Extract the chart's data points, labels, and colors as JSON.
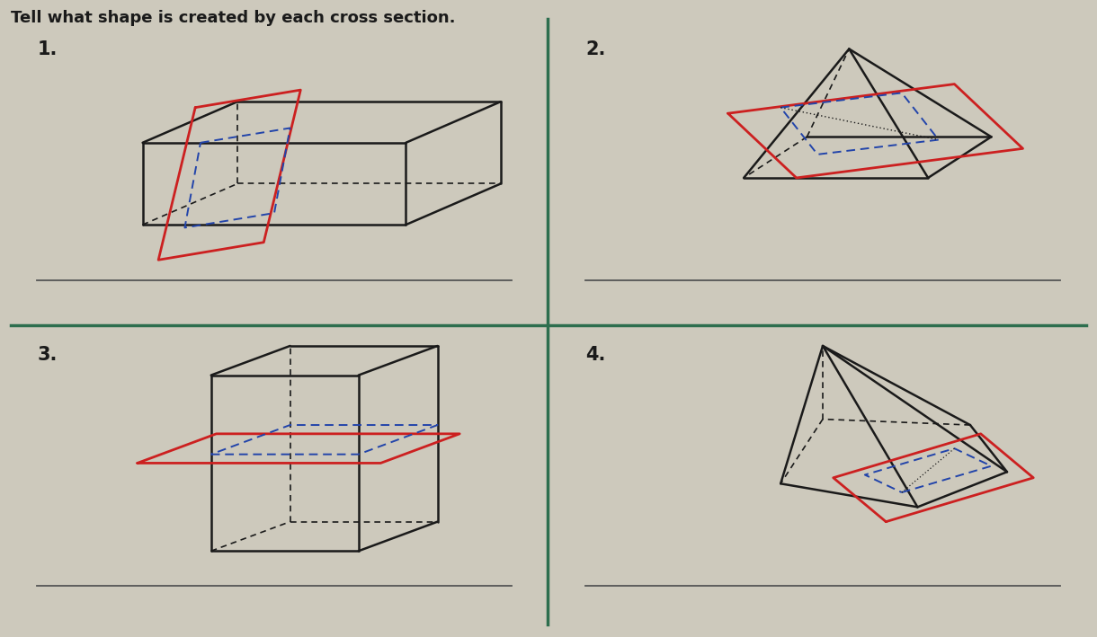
{
  "title": "Tell what shape is created by each cross section.",
  "title_fontsize": 13,
  "title_fontweight": "bold",
  "background_color": "#cdc9bc",
  "divider_color": "#2d6e4e",
  "label_fontsize": 15,
  "labels": [
    "1.",
    "2.",
    "3.",
    "4."
  ],
  "black": "#1a1a1a",
  "red": "#cc2020",
  "blue_dashed": "#2244aa",
  "answer_line_color": "#555555",
  "lw_solid": 1.8,
  "lw_hidden": 1.2,
  "lw_red": 2.0,
  "lw_blue": 1.4
}
